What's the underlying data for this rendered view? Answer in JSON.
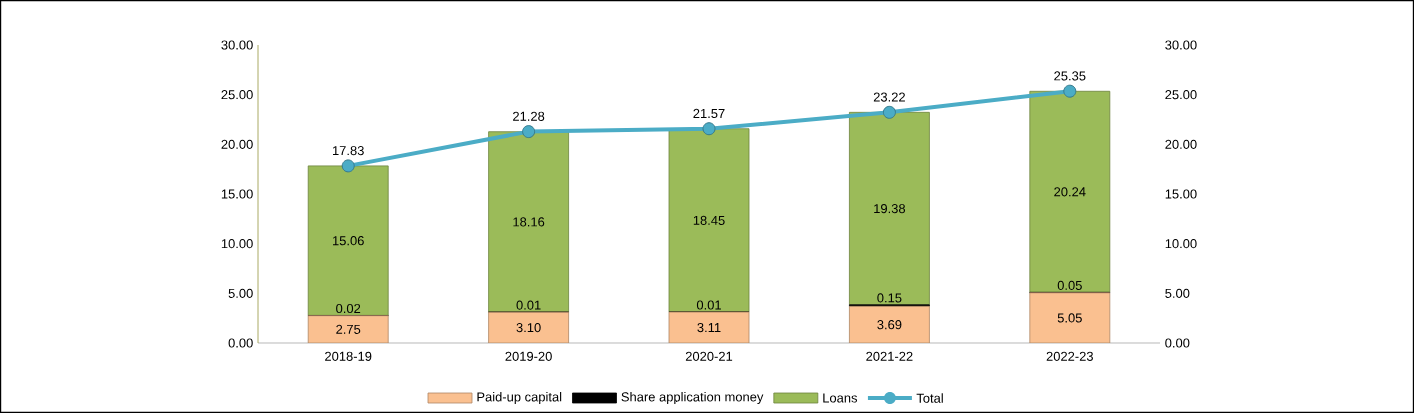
{
  "chart_data": {
    "type": "bar",
    "stacked": true,
    "legend": "bottom",
    "categories": [
      "2018-19",
      "2019-20",
      "2020-21",
      "2021-22",
      "2022-23"
    ],
    "ylim": [
      0,
      30
    ],
    "yticks": [
      {
        "value": 0,
        "label": "0.00"
      },
      {
        "value": 5,
        "label": "5.00"
      },
      {
        "value": 10,
        "label": "10.00"
      },
      {
        "value": 15,
        "label": "15.00"
      },
      {
        "value": 20,
        "label": "20.00"
      },
      {
        "value": 25,
        "label": "25.00"
      },
      {
        "value": 30,
        "label": "30.00"
      }
    ],
    "y2lim": [
      0,
      30
    ],
    "y2ticks": [
      {
        "value": 0,
        "label": "0.00"
      },
      {
        "value": 5,
        "label": "5.00"
      },
      {
        "value": 10,
        "label": "10.00"
      },
      {
        "value": 15,
        "label": "15.00"
      },
      {
        "value": 20,
        "label": "20.00"
      },
      {
        "value": 25,
        "label": "25.00"
      },
      {
        "value": 30,
        "label": "30.00"
      }
    ],
    "series": [
      {
        "name": "Paid-up capital",
        "color": "#fac090",
        "values": [
          2.75,
          3.1,
          3.11,
          3.69,
          5.05
        ],
        "value_labels": [
          "2.75",
          "3.10",
          "3.11",
          "3.69",
          "5.05"
        ]
      },
      {
        "name": "Share application money",
        "color": "#000000",
        "values": [
          0.02,
          0.01,
          0.01,
          0.15,
          0.05
        ],
        "value_labels": [
          "0.02",
          "0.01",
          "0.01",
          "0.15",
          "0.05"
        ]
      },
      {
        "name": "Loans",
        "color": "#9bbb59",
        "values": [
          15.06,
          18.16,
          18.45,
          19.38,
          20.24
        ],
        "value_labels": [
          "15.06",
          "18.16",
          "18.45",
          "19.38",
          "20.24"
        ]
      },
      {
        "name": "Total",
        "type": "line",
        "axis": "y2",
        "marker": "circle",
        "color": "#4bacc6",
        "values": [
          17.83,
          21.28,
          21.57,
          23.22,
          25.35
        ],
        "value_labels": [
          "17.83",
          "21.28",
          "21.57",
          "23.22",
          "25.35"
        ]
      }
    ]
  }
}
